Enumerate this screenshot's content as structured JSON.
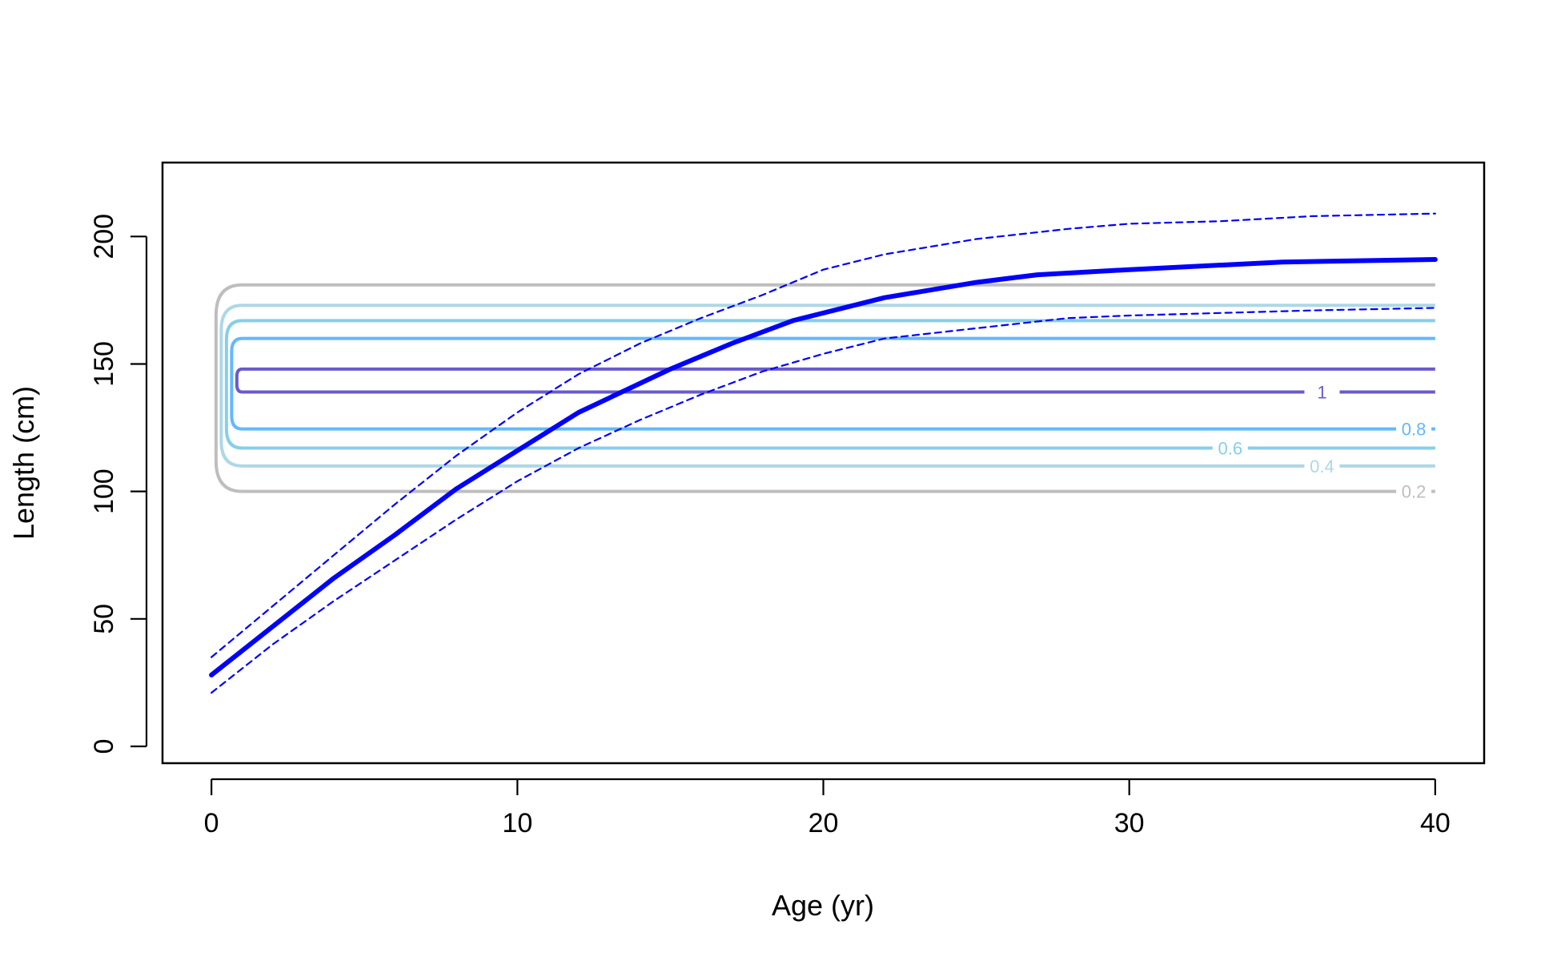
{
  "chart_data": {
    "type": "line",
    "title": "",
    "xlabel": "Age (yr)",
    "ylabel": "Length (cm)",
    "xlim": [
      -1.6,
      41.6
    ],
    "ylim": [
      -6.6,
      229
    ],
    "x_ticks": [
      0,
      10,
      20,
      30,
      40
    ],
    "y_ticks": [
      0,
      50,
      100,
      150,
      200
    ],
    "x_tick_labels": [
      "0",
      "10",
      "20",
      "30",
      "40"
    ],
    "y_tick_labels": [
      "0",
      "50",
      "100",
      "150",
      "200"
    ],
    "grid": false,
    "legend": "none",
    "colors": {
      "mean": "#0000ff",
      "interval": "#0000ff",
      "axis": "#000000"
    },
    "series": [
      {
        "role": "mean",
        "style": "solid",
        "x": [
          0,
          2,
          4,
          6,
          8,
          10,
          12,
          15,
          17,
          19,
          22,
          25,
          27,
          30,
          35,
          40
        ],
        "y": [
          28,
          47,
          66,
          83,
          101,
          116,
          131,
          148,
          158,
          167,
          176,
          182,
          185,
          187,
          190,
          191
        ]
      },
      {
        "role": "upper",
        "style": "dashed",
        "x": [
          0,
          2,
          4,
          6,
          8,
          10,
          12,
          14,
          16,
          18,
          20,
          22,
          25,
          28,
          30,
          33,
          36,
          40
        ],
        "y": [
          35,
          55,
          75,
          95,
          114,
          131,
          146,
          158,
          168,
          177,
          187,
          193,
          199,
          203,
          205,
          206,
          208,
          209
        ]
      },
      {
        "role": "lower",
        "style": "dashed",
        "x": [
          0,
          2,
          4,
          6,
          8,
          10,
          12,
          14,
          16,
          18,
          20,
          22,
          25,
          28,
          30,
          33,
          36,
          40
        ],
        "y": [
          21,
          40,
          57,
          73,
          89,
          104,
          117,
          128,
          138,
          147,
          154,
          160,
          164,
          168,
          169,
          170,
          171,
          172
        ]
      }
    ],
    "contours": [
      {
        "level": "0.2",
        "label": "0.2",
        "color": "#bebebe",
        "y_low": 100,
        "y_high": 181,
        "x_label": 39.3
      },
      {
        "level": "0.4",
        "label": "0.4",
        "color": "#add8e6",
        "y_low": 110,
        "y_high": 173,
        "x_label": 36.3
      },
      {
        "level": "0.6",
        "label": "0.6",
        "color": "#87ceeb",
        "y_low": 117,
        "y_high": 167,
        "x_label": 33.3
      },
      {
        "level": "0.8",
        "label": "0.8",
        "color": "#63b8ff",
        "y_low": 124.5,
        "y_high": 160,
        "x_label": 39.3
      },
      {
        "level": "1",
        "label": "1",
        "color": "#6a5acd",
        "y_low": 139,
        "y_high": 148,
        "x_label": 36.3
      }
    ]
  }
}
